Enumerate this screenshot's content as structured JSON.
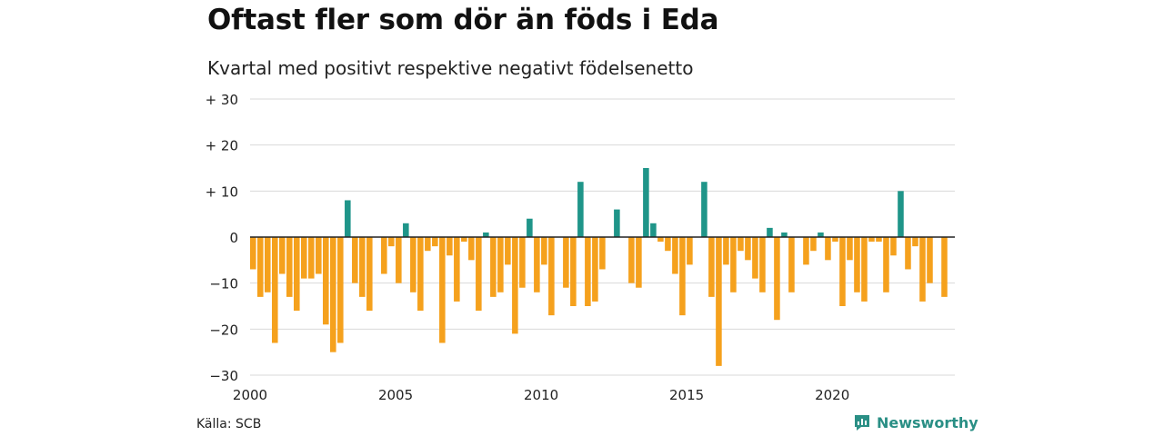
{
  "title": "Oftast fler som dör än föds i Eda",
  "subtitle": "Kvartal med positivt respektive negativt födelsenetto",
  "source": "Källa: SCB",
  "brand": {
    "name": "Newsworthy",
    "icon": "newsworthy-logo-icon"
  },
  "colors": {
    "positive": "#1f9589",
    "negative": "#f5a11d",
    "grid": "#d9d9d9",
    "zero": "#222222"
  },
  "chart_data": {
    "type": "bar",
    "title": "Oftast fler som dör än föds i Eda",
    "subtitle": "Kvartal med positivt respektive negativt födelsenetto",
    "xlabel": "",
    "ylabel": "",
    "ylim": [
      -30,
      30
    ],
    "yticks": [
      30,
      20,
      10,
      0,
      -10,
      -20,
      -30
    ],
    "ytick_labels": [
      "+ 30",
      "+ 20",
      "+ 10",
      "0",
      "−10",
      "−20",
      "−30"
    ],
    "xticks": [
      2000,
      2005,
      2010,
      2015,
      2020
    ],
    "xtick_labels": [
      "2000",
      "2005",
      "2010",
      "2015",
      "2020"
    ],
    "grid": true,
    "categories": [
      "2000 K1",
      "2000 K2",
      "2000 K3",
      "2000 K4",
      "2001 K1",
      "2001 K2",
      "2001 K3",
      "2001 K4",
      "2002 K1",
      "2002 K2",
      "2002 K3",
      "2002 K4",
      "2003 K1",
      "2003 K2",
      "2003 K3",
      "2003 K4",
      "2004 K1",
      "2004 K2",
      "2004 K3",
      "2004 K4",
      "2005 K1",
      "2005 K2",
      "2005 K3",
      "2005 K4",
      "2006 K1",
      "2006 K2",
      "2006 K3",
      "2006 K4",
      "2007 K1",
      "2007 K2",
      "2007 K3",
      "2007 K4",
      "2008 K1",
      "2008 K2",
      "2008 K3",
      "2008 K4",
      "2009 K1",
      "2009 K2",
      "2009 K3",
      "2009 K4",
      "2010 K1",
      "2010 K2",
      "2010 K3",
      "2010 K4",
      "2011 K1",
      "2011 K2",
      "2011 K3",
      "2011 K4",
      "2012 K1",
      "2012 K2",
      "2012 K3",
      "2012 K4",
      "2013 K1",
      "2013 K2",
      "2013 K3",
      "2013 K4",
      "2014 K1",
      "2014 K2",
      "2014 K3",
      "2014 K4",
      "2015 K1",
      "2015 K2",
      "2015 K3",
      "2015 K4",
      "2016 K1",
      "2016 K2",
      "2016 K3",
      "2016 K4",
      "2017 K1",
      "2017 K2",
      "2017 K3",
      "2017 K4",
      "2018 K1",
      "2018 K2",
      "2018 K3",
      "2018 K4",
      "2019 K1",
      "2019 K2",
      "2019 K3",
      "2019 K4",
      "2020 K1",
      "2020 K2",
      "2020 K3",
      "2020 K4",
      "2021 K1",
      "2021 K2",
      "2021 K3",
      "2021 K4",
      "2022 K1",
      "2022 K2",
      "2022 K3",
      "2022 K4",
      "2023 K1",
      "2023 K2",
      "2023 K3",
      "2023 K4",
      "2024 K1"
    ],
    "values": [
      -7,
      -13,
      -12,
      -23,
      -8,
      -13,
      -16,
      -9,
      -9,
      -8,
      -19,
      -25,
      -23,
      8,
      -10,
      -13,
      -16,
      0,
      -8,
      -2,
      -10,
      3,
      -12,
      -16,
      -3,
      -2,
      -23,
      -4,
      -14,
      -1,
      -5,
      -16,
      1,
      -13,
      -12,
      -6,
      -21,
      -11,
      4,
      -12,
      -6,
      -17,
      0,
      -11,
      -15,
      12,
      -15,
      -14,
      -7,
      0,
      6,
      0,
      -10,
      -11,
      15,
      3,
      -1,
      -3,
      -8,
      -17,
      -6,
      0,
      12,
      -13,
      -28,
      -6,
      -12,
      -3,
      -5,
      -9,
      -12,
      2,
      -18,
      1,
      -12,
      0,
      -6,
      -3,
      1,
      -5,
      -1,
      -15,
      -5,
      -12,
      -14,
      -1,
      -1,
      -12,
      -4,
      10,
      -7,
      -2,
      -14,
      -10,
      0,
      -13,
      0
    ]
  }
}
